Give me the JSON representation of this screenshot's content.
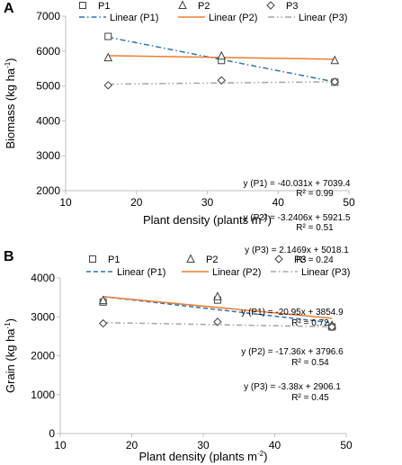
{
  "colors": {
    "P1": "#2e75b6",
    "P2": "#ed7d31",
    "P3": "#a5a5a5",
    "axis": "#bfbfbf",
    "marker": "#404040"
  },
  "chart_data": [
    {
      "panel_label": "A",
      "type": "scatter",
      "xlabel": "Plant density (plants m",
      "xlabel_sup": "-2",
      "xlabel_end": ")",
      "ylabel": "Biomass (kg ha",
      "ylabel_sup": "-1",
      "ylabel_end": ")",
      "xlim": [
        10,
        50
      ],
      "ylim": [
        2000,
        7000
      ],
      "xticks": [
        "10",
        "20",
        "30",
        "40",
        "50"
      ],
      "yticks": [
        "2000",
        "3000",
        "4000",
        "5000",
        "6000",
        "7000"
      ],
      "x": [
        16,
        32,
        48
      ],
      "series": [
        {
          "name": "P1",
          "marker": "square",
          "values": [
            6420,
            5730,
            5110
          ]
        },
        {
          "name": "P2",
          "marker": "triangle",
          "values": [
            5810,
            5860,
            5730
          ]
        },
        {
          "name": "P3",
          "marker": "diamond",
          "values": [
            5020,
            5160,
            5120
          ]
        }
      ],
      "trendlines": [
        {
          "name": "Linear (P1)",
          "series": "P1",
          "style": "dashdot",
          "slope": -40.031,
          "intercept": 7039.4
        },
        {
          "name": "Linear (P2)",
          "series": "P2",
          "style": "solid",
          "slope": -3.2406,
          "intercept": 5921.5
        },
        {
          "name": "Linear (P3)",
          "series": "P3",
          "style": "dashdotdot",
          "slope": 2.1469,
          "intercept": 5018.1
        }
      ],
      "equations": [
        {
          "eq": "y (P1) = -40.031x + 7039.4",
          "r2": "R² = 0.99"
        },
        {
          "eq": "y (P2) = -3.2406x + 5921.5",
          "r2": "R² = 0.51"
        },
        {
          "eq": "y (P3) = 2.1469x + 5018.1",
          "r2": "R² = 0.24"
        }
      ],
      "grid": false,
      "legend": "top"
    },
    {
      "panel_label": "B",
      "type": "scatter",
      "xlabel": "Plant density (plants m",
      "xlabel_sup": "-2",
      "xlabel_end": ")",
      "ylabel": "Grain (kg ha",
      "ylabel_sup": "-1",
      "ylabel_end": ")",
      "xlim": [
        10,
        50
      ],
      "ylim": [
        0,
        4000
      ],
      "xticks": [
        "10",
        "20",
        "30",
        "40",
        "50"
      ],
      "yticks": [
        "0",
        "1000",
        "2000",
        "3000",
        "4000"
      ],
      "x": [
        16,
        32,
        48
      ],
      "series": [
        {
          "name": "P1",
          "marker": "square",
          "values": [
            3380,
            3430,
            2740
          ]
        },
        {
          "name": "P2",
          "marker": "triangle",
          "values": [
            3420,
            3520,
            2780
          ]
        },
        {
          "name": "P3",
          "marker": "diamond",
          "values": [
            2830,
            2870,
            2740
          ]
        }
      ],
      "trendlines": [
        {
          "name": "Linear (P1)",
          "series": "P1",
          "style": "dashed",
          "slope": -20.95,
          "intercept": 3854.9
        },
        {
          "name": "Linear (P2)",
          "series": "P2",
          "style": "solid",
          "slope": -17.36,
          "intercept": 3796.6
        },
        {
          "name": "Linear (P3)",
          "series": "P3",
          "style": "dashdot",
          "slope": -3.38,
          "intercept": 2906.1
        }
      ],
      "equations": [
        {
          "eq": "y (P1) = -20.95x + 3854.9",
          "r2": "R² = 0.72"
        },
        {
          "eq": "y (P2) = -17.36x + 3796.6",
          "r2": "R² = 0.54"
        },
        {
          "eq": "y (P3) = -3.38x + 2906.1",
          "r2": "R² = 0.45"
        }
      ],
      "grid": false,
      "legend": "top"
    }
  ]
}
